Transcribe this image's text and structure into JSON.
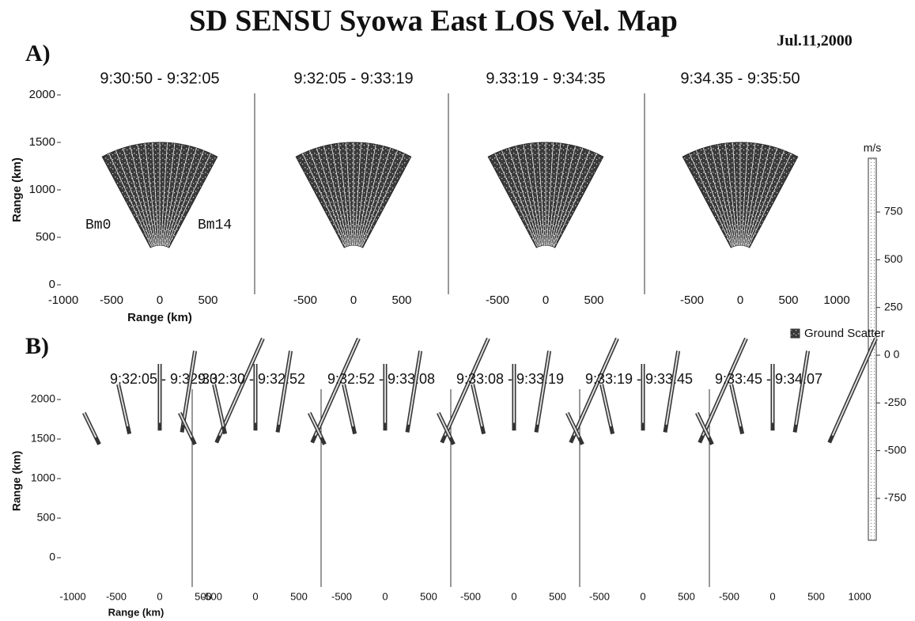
{
  "title": "SD SENSU Syowa East LOS Vel. Map",
  "date": "Jul.11,2000",
  "panel_a": {
    "label": "A)",
    "y_axis_label": "Range (km)",
    "x_axis_label": "Range (km)",
    "y_ticks": [
      0,
      500,
      1000,
      1500,
      2000
    ],
    "beam_labels": [
      "Bm0",
      "Bm14"
    ],
    "frames": [
      {
        "time": "9:30:50 - 9:32:05",
        "x_ticks": [
          -1000,
          -500,
          0,
          500
        ]
      },
      {
        "time": "9:32:05 - 9:33:19",
        "x_ticks": [
          -500,
          0,
          500
        ]
      },
      {
        "time": "9.33:19 - 9:34:35",
        "x_ticks": [
          -500,
          0,
          500
        ]
      },
      {
        "time": "9:34.35 - 9:35:50",
        "x_ticks": [
          -500,
          0,
          500,
          1000
        ]
      }
    ]
  },
  "panel_b": {
    "label": "B)",
    "y_axis_label": "Range (km)",
    "x_axis_label": "Range (km)",
    "y_ticks": [
      0,
      500,
      1000,
      1500,
      2000
    ],
    "frames": [
      {
        "time": "9:32:05 - 9:32:30",
        "x_ticks": [
          -1000,
          -500,
          0,
          500
        ]
      },
      {
        "time": "9:32:30 - 9:32:52",
        "x_ticks": [
          -500,
          0,
          500
        ]
      },
      {
        "time": "9:32:52 - 9:33:08",
        "x_ticks": [
          -500,
          0,
          500
        ]
      },
      {
        "time": "9:33:08 - 9:33:19",
        "x_ticks": [
          -500,
          0,
          500
        ]
      },
      {
        "time": "9:33:19 - 9:33:45",
        "x_ticks": [
          -500,
          0,
          500
        ]
      },
      {
        "time": "9:33:45 - 9:34:07",
        "x_ticks": [
          -500,
          0,
          500,
          1000
        ]
      }
    ]
  },
  "colorbar": {
    "unit": "m/s",
    "ticks": [
      750,
      500,
      250,
      {
        "value": 0,
        "label": "0 0"
      },
      -250,
      -500,
      -750
    ]
  },
  "ground_scatter": "Ground Scatter"
}
